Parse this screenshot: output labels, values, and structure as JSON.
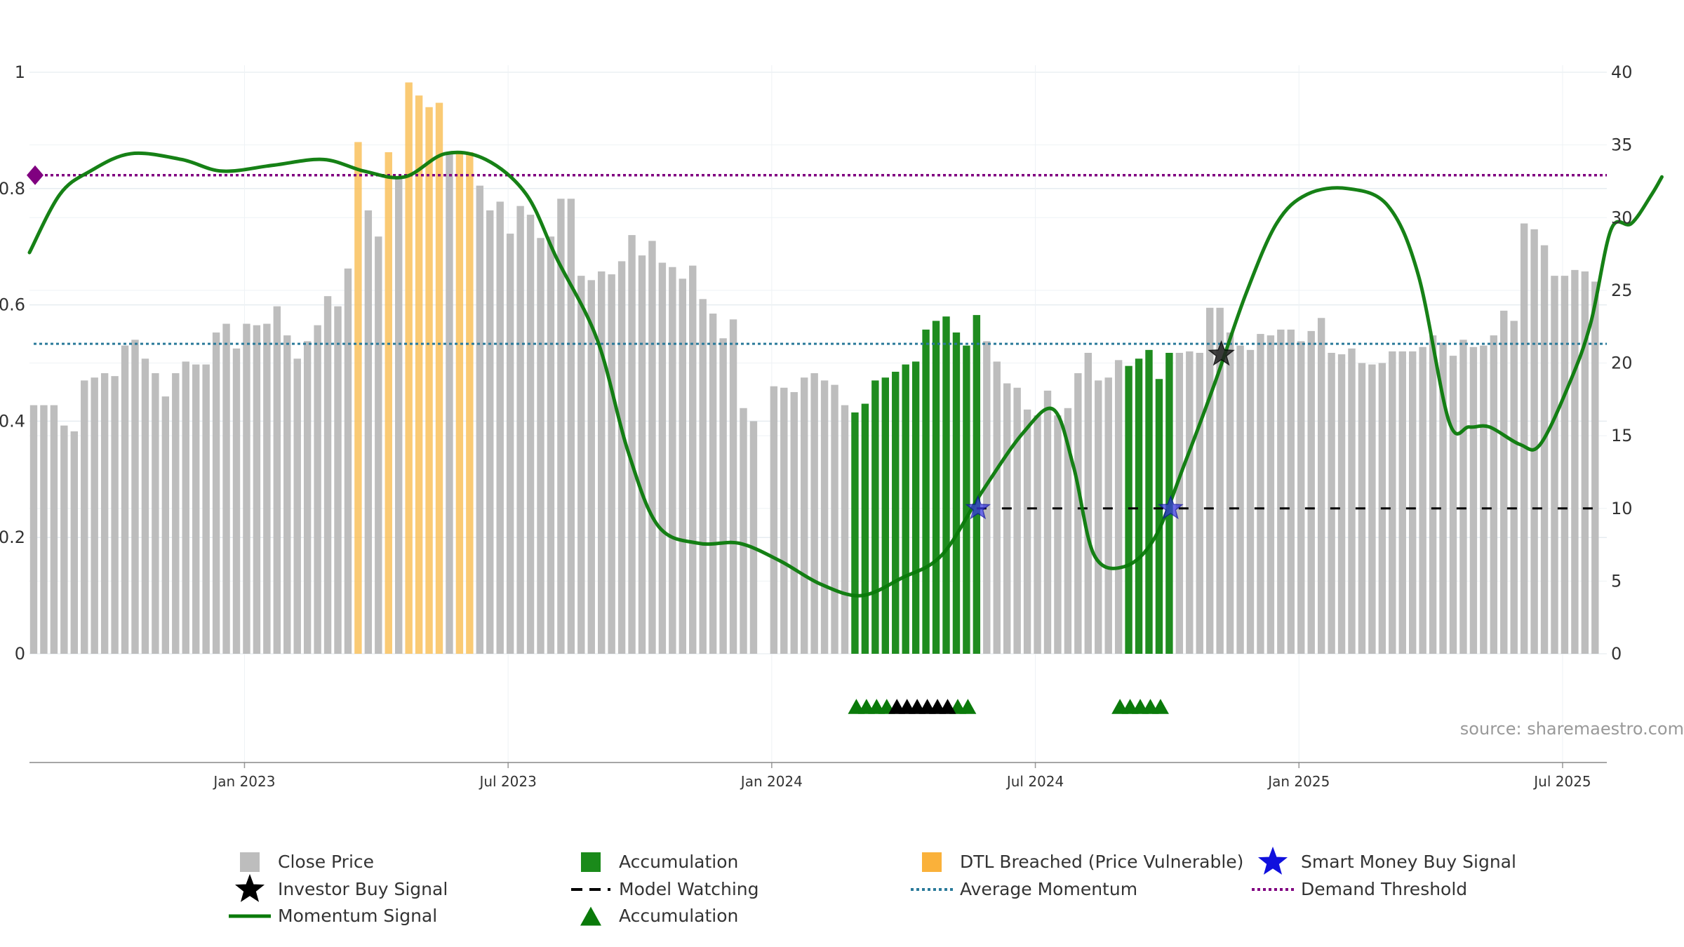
{
  "chart_data": {
    "type": "bar",
    "source_text": "source: sharemaestro.com",
    "left_axis": {
      "range": [
        0,
        1
      ],
      "ticks": [
        "0",
        "0.2",
        "0.4",
        "0.6",
        "0.8",
        "1"
      ]
    },
    "right_axis": {
      "range": [
        0,
        40
      ],
      "ticks": [
        "0",
        "5",
        "10",
        "15",
        "20",
        "25",
        "30",
        "35",
        "40"
      ]
    },
    "x_ticks": [
      "Jan 2023",
      "Jul 2023",
      "Jan 2024",
      "Jul 2024",
      "Jan 2025",
      "Jul 2025"
    ],
    "x_range": {
      "start_label": "Aug 2022",
      "end_label": "Oct 2025"
    },
    "close_price_weekly": [
      17.1,
      17.1,
      17.1,
      15.7,
      15.3,
      18.8,
      19.0,
      19.3,
      19.1,
      21.2,
      21.6,
      20.3,
      19.3,
      17.7,
      19.3,
      20.1,
      19.9,
      19.9,
      22.1,
      22.7,
      21.0,
      22.7,
      22.6,
      22.7,
      23.9,
      21.9,
      20.3,
      21.5,
      22.6,
      24.6,
      23.9,
      26.5,
      35.2,
      30.5,
      28.7,
      34.5,
      32.8,
      39.3,
      38.4,
      37.6,
      37.9,
      34.4,
      34.5,
      34.5,
      32.2,
      30.5,
      31.1,
      28.9,
      30.8,
      30.2,
      28.6,
      28.7,
      31.3,
      31.3,
      26.0,
      25.7,
      26.3,
      26.1,
      27.0,
      28.8,
      27.4,
      28.4,
      26.9,
      26.6,
      25.8,
      26.7,
      24.4,
      23.4,
      21.7,
      23.0,
      16.9,
      16.0,
      0,
      18.4,
      18.3,
      18.0,
      19.0,
      19.3,
      18.8,
      18.5,
      17.1,
      16.6,
      17.2,
      18.8,
      19.0,
      19.4,
      19.9,
      20.1,
      22.3,
      22.9,
      23.2,
      22.1,
      21.2,
      23.3,
      21.5,
      20.1,
      18.6,
      18.3,
      16.8,
      16.4,
      18.1,
      16.4,
      16.9,
      19.3,
      20.7,
      18.8,
      19.0,
      20.2,
      19.8,
      20.3,
      20.9,
      18.9,
      20.7,
      20.7,
      20.8,
      20.7,
      23.8,
      23.8,
      22.1,
      21.2,
      20.9,
      22.0,
      21.9,
      22.3,
      22.3,
      21.5,
      22.2,
      23.1,
      20.7,
      20.6,
      21.0,
      20.0,
      19.9,
      20.0,
      20.8,
      20.8,
      20.8,
      21.1,
      21.9,
      21.4,
      20.5,
      21.6,
      21.1,
      21.2,
      21.9,
      23.6,
      22.9,
      29.6,
      29.2,
      28.1,
      26.0,
      26.0,
      26.4,
      26.3,
      25.6
    ],
    "close_price_start_week": 0,
    "bar_category": {
      "dtl_breached": [
        32,
        35,
        37,
        38,
        39,
        40,
        42,
        43
      ],
      "accumulation": [
        81,
        82,
        83,
        84,
        85,
        86,
        87,
        88,
        89,
        90,
        91,
        92,
        93,
        108,
        109,
        110,
        111,
        112
      ]
    },
    "momentum_signal": [
      [
        0,
        0.69
      ],
      [
        3,
        0.79
      ],
      [
        6,
        0.83
      ],
      [
        10,
        0.86
      ],
      [
        15,
        0.85
      ],
      [
        19,
        0.83
      ],
      [
        24,
        0.84
      ],
      [
        29,
        0.85
      ],
      [
        33,
        0.83
      ],
      [
        37,
        0.82
      ],
      [
        41,
        0.86
      ],
      [
        45,
        0.85
      ],
      [
        49,
        0.79
      ],
      [
        52,
        0.68
      ],
      [
        56,
        0.54
      ],
      [
        59,
        0.35
      ],
      [
        62,
        0.22
      ],
      [
        66,
        0.19
      ],
      [
        70,
        0.19
      ],
      [
        74,
        0.16
      ],
      [
        78,
        0.12
      ],
      [
        82,
        0.1
      ],
      [
        86,
        0.13
      ],
      [
        90,
        0.17
      ],
      [
        94,
        0.28
      ],
      [
        98,
        0.38
      ],
      [
        101,
        0.42
      ],
      [
        103,
        0.32
      ],
      [
        105,
        0.17
      ],
      [
        108,
        0.15
      ],
      [
        111,
        0.2
      ],
      [
        114,
        0.33
      ],
      [
        117,
        0.47
      ],
      [
        120,
        0.62
      ],
      [
        123,
        0.74
      ],
      [
        126,
        0.79
      ],
      [
        130,
        0.8
      ],
      [
        134,
        0.77
      ],
      [
        137,
        0.65
      ],
      [
        140,
        0.4
      ],
      [
        142,
        0.39
      ],
      [
        144,
        0.39
      ],
      [
        147,
        0.36
      ],
      [
        149,
        0.36
      ],
      [
        152,
        0.47
      ],
      [
        154,
        0.57
      ],
      [
        156,
        0.73
      ],
      [
        158,
        0.74
      ],
      [
        160,
        0.79
      ],
      [
        161,
        0.82
      ]
    ],
    "average_momentum": 0.533,
    "demand_threshold": 0.823,
    "model_watching": {
      "value_right_axis": 10,
      "start_week": 93
    },
    "smart_money_buy_signals": [
      {
        "week": 93,
        "value_right_axis": 10
      },
      {
        "week": 112,
        "value_right_axis": 10
      }
    ],
    "investor_buy_signals": [
      {
        "week": 117,
        "value_right_axis": 20.6
      }
    ],
    "accumulation_markers": {
      "green": [
        81,
        82,
        83,
        84,
        91,
        92,
        107,
        108,
        109,
        110,
        111
      ],
      "black": [
        85,
        86,
        87,
        88,
        89,
        90
      ]
    },
    "threshold_marker": {
      "week": 0,
      "value": 0.823
    },
    "legend": [
      {
        "label": "Close Price",
        "symbol": "square",
        "color": "#bdbdbd"
      },
      {
        "label": "Accumulation",
        "symbol": "square",
        "color": "#1a8a1a"
      },
      {
        "label": "DTL Breached (Price Vulnerable)",
        "symbol": "square",
        "color": "#f9a825"
      },
      {
        "label": "Smart Money Buy Signal",
        "symbol": "star",
        "color": "#1010dd"
      },
      {
        "label": "Investor Buy Signal",
        "symbol": "star",
        "color": "#000000"
      },
      {
        "label": "Model Watching",
        "symbol": "dash",
        "color": "#000000"
      },
      {
        "label": "Average Momentum",
        "symbol": "dot",
        "color": "#2a7a9a"
      },
      {
        "label": "Demand Threshold",
        "symbol": "dot",
        "color": "#800080"
      },
      {
        "label": "Momentum Signal",
        "symbol": "line",
        "color": "#0a7a0a"
      },
      {
        "label": "Accumulation",
        "symbol": "triangle",
        "color": "#0a7a0a"
      }
    ],
    "colors": {
      "close": "#bdbdbd",
      "accumulation": "#1f8c1f",
      "dtl": "#f9c15c",
      "momentum": "#0a7a0a",
      "avg": "#2a7a9a",
      "threshold": "#800080",
      "grid": "#e6ecf0"
    }
  }
}
